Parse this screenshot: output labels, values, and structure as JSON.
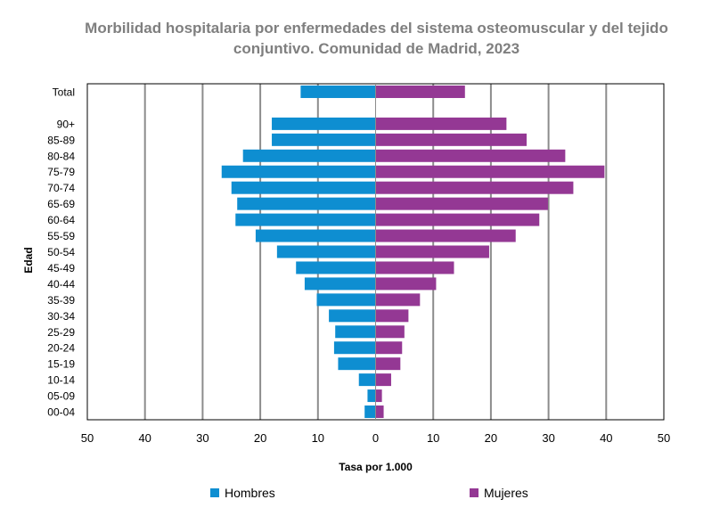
{
  "chart_data": {
    "type": "bar",
    "orientation": "horizontal",
    "title": "Morbilidad hospitalaria por enfermedades del sistema osteomuscular y del tejido conjuntivo. Comunidad de Madrid, 2023",
    "xlabel": "Tasa por 1.000",
    "ylabel": "Edad",
    "xlim": [
      -50,
      50
    ],
    "x_ticks": [
      "50",
      "40",
      "30",
      "20",
      "10",
      "0",
      "10",
      "20",
      "30",
      "40",
      "50"
    ],
    "categories": [
      "Total",
      "90+",
      "85-89",
      "80-84",
      "75-79",
      "70-74",
      "65-69",
      "60-64",
      "55-59",
      "50-54",
      "45-49",
      "40-44",
      "35-39",
      "30-34",
      "25-29",
      "20-24",
      "15-19",
      "10-14",
      "05-09",
      "00-04"
    ],
    "series": [
      {
        "name": "Hombres",
        "color": "#0e8ed1",
        "values": [
          13.0,
          18.0,
          18.0,
          23.0,
          26.7,
          25.0,
          24.0,
          24.3,
          20.8,
          17.1,
          13.8,
          12.3,
          10.2,
          8.1,
          7.0,
          7.2,
          6.5,
          2.9,
          1.4,
          1.9
        ]
      },
      {
        "name": "Mujeres",
        "color": "#943894",
        "values": [
          15.5,
          22.7,
          26.2,
          32.9,
          39.7,
          34.3,
          29.9,
          28.4,
          24.3,
          19.7,
          13.6,
          10.5,
          7.7,
          5.7,
          5.0,
          4.6,
          4.3,
          2.7,
          1.1,
          1.4
        ]
      }
    ],
    "legend_position": "bottom",
    "grid": true
  }
}
